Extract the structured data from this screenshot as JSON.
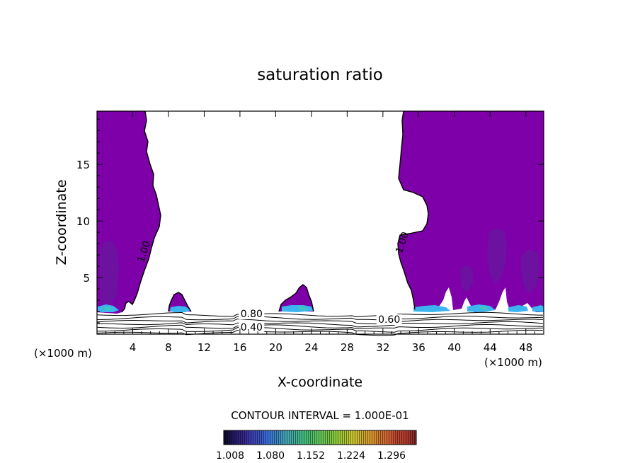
{
  "chart_data": {
    "type": "contour",
    "title": "saturation ratio",
    "xlabel": "X-coordinate",
    "ylabel": "Z-coordinate",
    "x_unit": "(×1000 m)",
    "z_unit": "(×1000 m)",
    "xlim": [
      0,
      50
    ],
    "ylim": [
      0,
      19.7
    ],
    "x_ticks": [
      4,
      8,
      12,
      16,
      20,
      24,
      28,
      32,
      36,
      40,
      44,
      48
    ],
    "y_ticks": [
      5,
      10,
      15
    ],
    "contour_labels": [
      {
        "text": "1.00",
        "x": 5.6,
        "z": 7.2
      },
      {
        "text": "1.00",
        "x": 34.5,
        "z": 8.0
      },
      {
        "text": "0.80",
        "x": 17.3,
        "z": 1.5
      },
      {
        "text": "0.60",
        "x": 32.7,
        "z": 1.0
      },
      {
        "text": "0.40",
        "x": 17.3,
        "z": 0.3
      }
    ],
    "contour_interval_text": "CONTOUR INTERVAL = 1.000E-01",
    "colorbar": {
      "labels": [
        "1.008",
        "1.080",
        "1.152",
        "1.224",
        "1.296"
      ],
      "min": 1.008,
      "max": 1.296,
      "colors": [
        "#0a0a2a",
        "#3a2a9a",
        "#3a6ad8",
        "#40a8b0",
        "#48c070",
        "#7ac840",
        "#c8c830",
        "#d89030",
        "#c84a30",
        "#8a2a28"
      ]
    },
    "fill_color": "#7d00a8",
    "accent_colors": [
      "#3cb4f0",
      "#4aa8e8",
      "#40c8b8"
    ]
  }
}
